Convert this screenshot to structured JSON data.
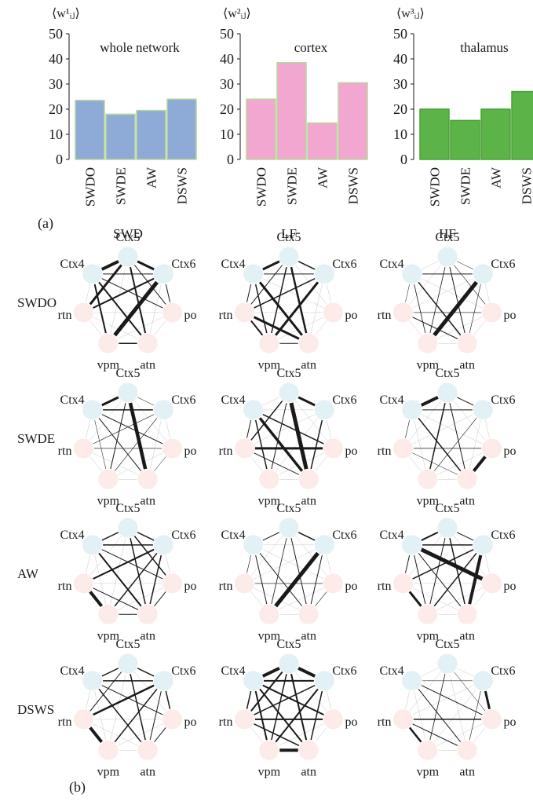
{
  "panel_labels": {
    "a": "(a)",
    "b": "(b)"
  },
  "network": {
    "column_headers": [
      "SWD",
      "LF",
      "HF"
    ],
    "row_labels": [
      "SWDO",
      "SWDE",
      "AW",
      "DSWS"
    ],
    "nodes": [
      {
        "id": "ctx5",
        "label": "Ctx5",
        "type": "cortex"
      },
      {
        "id": "ctx6",
        "label": "Ctx6",
        "type": "cortex"
      },
      {
        "id": "po",
        "label": "po",
        "type": "thalamus"
      },
      {
        "id": "atn",
        "label": "atn",
        "type": "thalamus"
      },
      {
        "id": "vpm",
        "label": "vpm",
        "type": "thalamus"
      },
      {
        "id": "rtn",
        "label": "rtn",
        "type": "thalamus"
      },
      {
        "id": "ctx4",
        "label": "Ctx4",
        "type": "cortex"
      }
    ],
    "colors": {
      "cortex": "#e2f1f5",
      "thalamus": "#fcebe9",
      "edge": "#1a1a1a"
    },
    "grid": [
      [
        [
          [
            6,
            0,
            4
          ],
          [
            1,
            4,
            5
          ],
          [
            5,
            0,
            3
          ],
          [
            0,
            1,
            3
          ],
          [
            6,
            3,
            2
          ],
          [
            1,
            5,
            2
          ],
          [
            6,
            4,
            2
          ],
          [
            0,
            3,
            2
          ],
          [
            3,
            4,
            1.5
          ],
          [
            6,
            2,
            1
          ],
          [
            0,
            2,
            1
          ],
          [
            1,
            2,
            1
          ],
          [
            0,
            5,
            1
          ],
          [
            6,
            1,
            1
          ]
        ],
        [
          [
            6,
            0,
            3
          ],
          [
            6,
            3,
            3
          ],
          [
            5,
            3,
            3
          ],
          [
            0,
            3,
            2.5
          ],
          [
            1,
            4,
            3
          ],
          [
            5,
            4,
            2
          ],
          [
            0,
            4,
            1.5
          ],
          [
            6,
            4,
            1.5
          ],
          [
            1,
            5,
            1.5
          ],
          [
            0,
            1,
            1.5
          ],
          [
            3,
            4,
            1
          ],
          [
            6,
            1,
            1
          ],
          [
            0,
            5,
            1
          ],
          [
            5,
            6,
            1
          ]
        ],
        [
          [
            1,
            4,
            5
          ],
          [
            6,
            3,
            1.5
          ],
          [
            5,
            3,
            1
          ],
          [
            6,
            1,
            1
          ],
          [
            0,
            3,
            1
          ],
          [
            0,
            4,
            0.8
          ],
          [
            6,
            4,
            0.8
          ],
          [
            1,
            3,
            0.6
          ],
          [
            0,
            2,
            0.6
          ],
          [
            2,
            5,
            0.6
          ],
          [
            5,
            6,
            0.5
          ],
          [
            0,
            1,
            0.5
          ]
        ]
      ],
      [
        [
          [
            0,
            3,
            4.5
          ],
          [
            6,
            0,
            3
          ],
          [
            6,
            1,
            1.5
          ],
          [
            0,
            4,
            1
          ],
          [
            6,
            2,
            1
          ],
          [
            6,
            3,
            1
          ],
          [
            5,
            2,
            0.6
          ],
          [
            1,
            4,
            0.6
          ],
          [
            5,
            1,
            0.6
          ],
          [
            6,
            4,
            0.5
          ],
          [
            2,
            3,
            0.5
          ],
          [
            0,
            1,
            0.5
          ]
        ],
        [
          [
            0,
            3,
            5
          ],
          [
            6,
            3,
            3.5
          ],
          [
            5,
            2,
            3
          ],
          [
            0,
            1,
            3
          ],
          [
            6,
            4,
            1.5
          ],
          [
            6,
            2,
            1.5
          ],
          [
            0,
            5,
            1.5
          ],
          [
            1,
            3,
            1.5
          ],
          [
            0,
            4,
            1
          ],
          [
            5,
            3,
            1
          ],
          [
            6,
            5,
            1
          ]
        ],
        [
          [
            6,
            0,
            4
          ],
          [
            2,
            3,
            4
          ],
          [
            0,
            4,
            1.5
          ],
          [
            6,
            3,
            1.5
          ],
          [
            0,
            3,
            1
          ],
          [
            0,
            1,
            1
          ],
          [
            6,
            1,
            1
          ],
          [
            5,
            2,
            0.8
          ],
          [
            1,
            4,
            0.6
          ],
          [
            6,
            5,
            0.6
          ],
          [
            5,
            3,
            0.5
          ]
        ]
      ],
      [
        [
          [
            5,
            4,
            4
          ],
          [
            5,
            1,
            2
          ],
          [
            6,
            3,
            2
          ],
          [
            0,
            2,
            1.5
          ],
          [
            0,
            3,
            1.5
          ],
          [
            6,
            1,
            1.5
          ],
          [
            1,
            4,
            1.5
          ],
          [
            6,
            0,
            1.5
          ],
          [
            0,
            1,
            1.5
          ],
          [
            1,
            3,
            1.5
          ],
          [
            6,
            2,
            1
          ],
          [
            5,
            3,
            1
          ],
          [
            4,
            3,
            1
          ],
          [
            2,
            3,
            1
          ]
        ],
        [
          [
            1,
            4,
            5
          ],
          [
            0,
            1,
            1.5
          ],
          [
            6,
            0,
            1
          ],
          [
            6,
            3,
            1
          ],
          [
            0,
            3,
            1
          ],
          [
            6,
            4,
            1
          ],
          [
            1,
            3,
            1
          ],
          [
            0,
            4,
            0.8
          ],
          [
            5,
            2,
            0.6
          ],
          [
            2,
            3,
            0.6
          ],
          [
            5,
            6,
            0.6
          ]
        ],
        [
          [
            6,
            2,
            5
          ],
          [
            1,
            3,
            4
          ],
          [
            5,
            4,
            3
          ],
          [
            6,
            0,
            2
          ],
          [
            6,
            1,
            1.5
          ],
          [
            0,
            3,
            1.5
          ],
          [
            1,
            4,
            1.5
          ],
          [
            1,
            5,
            1.5
          ],
          [
            6,
            3,
            1
          ],
          [
            6,
            4,
            1
          ],
          [
            0,
            1,
            1
          ],
          [
            0,
            4,
            1
          ],
          [
            5,
            6,
            1
          ]
        ]
      ],
      [
        [
          [
            5,
            1,
            2.5
          ],
          [
            5,
            4,
            4
          ],
          [
            6,
            3,
            1.5
          ],
          [
            0,
            3,
            1.5
          ],
          [
            6,
            1,
            1.5
          ],
          [
            6,
            0,
            1.5
          ],
          [
            0,
            1,
            1.5
          ],
          [
            1,
            4,
            1.5
          ],
          [
            1,
            2,
            1.5
          ],
          [
            6,
            2,
            1
          ],
          [
            0,
            5,
            1
          ],
          [
            2,
            3,
            1
          ],
          [
            1,
            3,
            1
          ]
        ],
        [
          [
            6,
            0,
            4
          ],
          [
            0,
            1,
            4
          ],
          [
            4,
            3,
            4
          ],
          [
            6,
            3,
            2
          ],
          [
            5,
            2,
            2
          ],
          [
            0,
            3,
            2
          ],
          [
            6,
            2,
            2
          ],
          [
            0,
            5,
            2
          ],
          [
            6,
            4,
            2
          ],
          [
            1,
            4,
            2
          ],
          [
            6,
            1,
            2
          ],
          [
            5,
            3,
            1.5
          ],
          [
            6,
            5,
            1.5
          ],
          [
            0,
            4,
            1.5
          ],
          [
            1,
            3,
            1.5
          ],
          [
            1,
            5,
            1.5
          ]
        ],
        [
          [
            1,
            2,
            3
          ],
          [
            5,
            4,
            2.5
          ],
          [
            5,
            2,
            1.5
          ],
          [
            6,
            2,
            1
          ],
          [
            6,
            3,
            1
          ],
          [
            5,
            3,
            1
          ],
          [
            0,
            4,
            0.8
          ],
          [
            1,
            3,
            0.6
          ],
          [
            6,
            1,
            0.5
          ],
          [
            0,
            2,
            0.5
          ]
        ]
      ]
    ]
  },
  "chart_data": [
    {
      "type": "bar",
      "ylabel": "⟨w¹ᵢⱼ⟩",
      "annotation": "whole network",
      "categories": [
        "SWDO",
        "SWDE",
        "AW",
        "DSWS"
      ],
      "values": [
        23.5,
        18,
        19.5,
        24
      ],
      "ylim": [
        0,
        50
      ],
      "yticks": [
        0,
        10,
        20,
        30,
        40,
        50
      ],
      "fill": "#8eaad6",
      "edge": "#b7d69a"
    },
    {
      "type": "bar",
      "ylabel": "⟨w²ᵢⱼ⟩",
      "annotation": "cortex",
      "categories": [
        "SWDO",
        "SWDE",
        "AW",
        "DSWS"
      ],
      "values": [
        24,
        38.5,
        14.5,
        30.5
      ],
      "ylim": [
        0,
        50
      ],
      "yticks": [
        0,
        10,
        20,
        30,
        40,
        50
      ],
      "fill": "#f1a7cf",
      "edge": "#b7d69a"
    },
    {
      "type": "bar",
      "ylabel": "⟨w³ᵢⱼ⟩",
      "annotation": "thalamus",
      "categories": [
        "SWDO",
        "SWDE",
        "AW",
        "DSWS"
      ],
      "values": [
        20,
        15.5,
        20,
        27
      ],
      "ylim": [
        0,
        50
      ],
      "yticks": [
        0,
        10,
        20,
        30,
        40,
        50
      ],
      "fill": "#5cb347",
      "edge": "#4aa036"
    }
  ]
}
